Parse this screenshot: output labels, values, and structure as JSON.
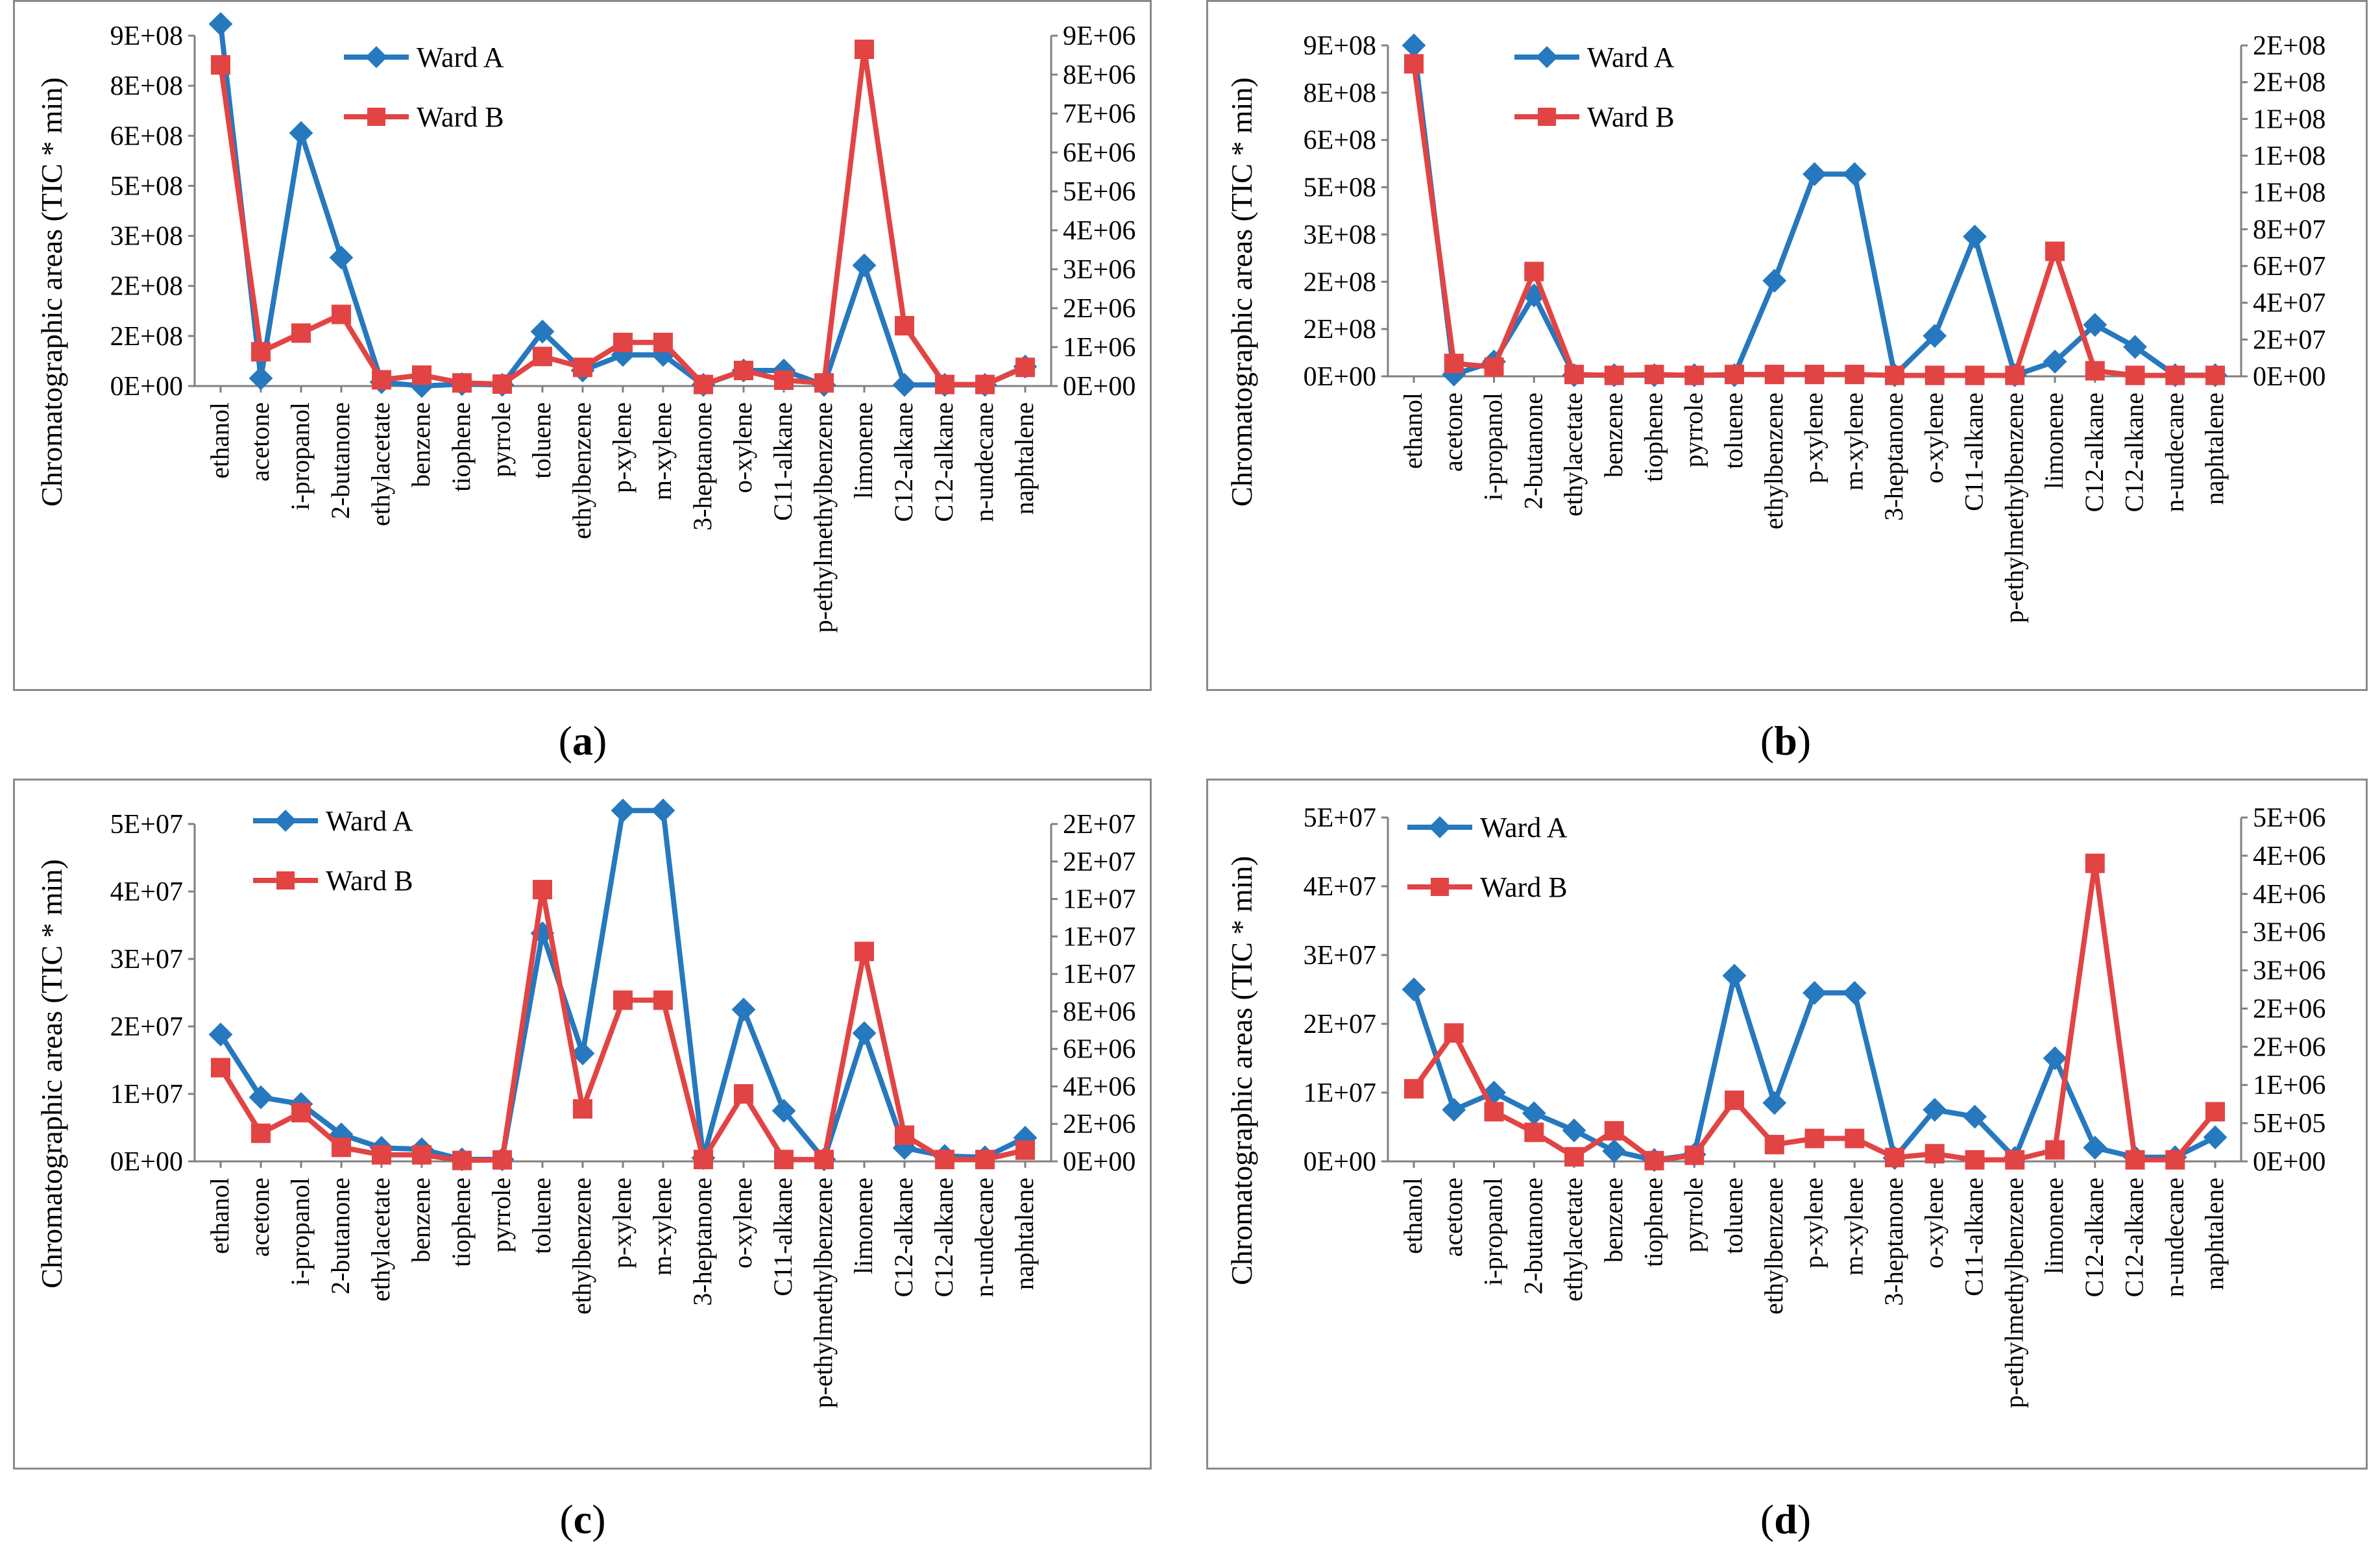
{
  "shared": {
    "categories": [
      "ethanol",
      "acetone",
      "i-propanol",
      "2-butanone",
      "ethylacetate",
      "benzene",
      "tiophene",
      "pyrrole",
      "toluene",
      "ethylbenzene",
      "p-xylene",
      "m-xylene",
      "3-heptanone",
      "o-xylene",
      "C11-alkane",
      "p-ethylmethylbenzene",
      "limonene",
      "C12-alkane",
      "C12-alkane",
      "n-undecane",
      "naphtalene"
    ],
    "ylabel": "Chromatographic areas (TIC * min)",
    "legend": [
      "Ward A",
      "Ward B"
    ],
    "colors": {
      "wardA": "#2678bf",
      "wardB": "#e24444",
      "frame": "#8a8a8a"
    }
  },
  "chart_data": [
    {
      "type": "line",
      "panel": "(a)",
      "panel_letter": "a",
      "categories": [
        "ethanol",
        "acetone",
        "i-propanol",
        "2-butanone",
        "ethylacetate",
        "benzene",
        "tiophene",
        "pyrrole",
        "toluene",
        "ethylbenzene",
        "p-xylene",
        "m-xylene",
        "3-heptanone",
        "o-xylene",
        "C11-alkane",
        "p-ethylmethylbenzene",
        "limonene",
        "C12-alkane",
        "C12-alkane",
        "n-undecane",
        "naphtalene"
      ],
      "ylabel": "Chromatographic areas (TIC * min)",
      "left_ticks": [
        "0E+00",
        "2E+08",
        "2E+08",
        "3E+08",
        "5E+08",
        "6E+08",
        "8E+08",
        "9E+08"
      ],
      "right_ticks": [
        "0E+00",
        "1E+06",
        "2E+06",
        "3E+06",
        "4E+06",
        "5E+06",
        "6E+06",
        "7E+06",
        "8E+06",
        "9E+06"
      ],
      "left_ylim": [
        0,
        900000000
      ],
      "right_ylim": [
        0,
        9000000
      ],
      "series": [
        {
          "name": "Ward A",
          "axis": "left",
          "marker": "diamond",
          "values": [
            930000000,
            20000000,
            650000000,
            330000000,
            10000000,
            0,
            5000000,
            3000000,
            140000000,
            40000000,
            80000000,
            80000000,
            3000000,
            40000000,
            40000000,
            3000000,
            310000000,
            3000000,
            3000000,
            3000000,
            50000000
          ]
        },
        {
          "name": "Ward B",
          "axis": "right",
          "marker": "square",
          "values": [
            8250000,
            880000,
            1360000,
            1840000,
            160000,
            280000,
            80000,
            50000,
            760000,
            480000,
            1120000,
            1120000,
            40000,
            400000,
            150000,
            80000,
            8650000,
            1550000,
            40000,
            40000,
            480000
          ]
        }
      ],
      "legend_position": "top-left"
    },
    {
      "type": "line",
      "panel": "(b)",
      "panel_letter": "b",
      "categories": [
        "ethanol",
        "acetone",
        "i-propanol",
        "2-butanone",
        "ethylacetate",
        "benzene",
        "tiophene",
        "pyrrole",
        "toluene",
        "ethylbenzene",
        "p-xylene",
        "m-xylene",
        "3-heptanone",
        "o-xylene",
        "C11-alkane",
        "p-ethylmethylbenzene",
        "limonene",
        "C12-alkane",
        "C12-alkane",
        "n-undecane",
        "naphtalene"
      ],
      "ylabel": "Chromatographic areas (TIC * min)",
      "left_ticks": [
        "0E+00",
        "2E+08",
        "2E+08",
        "3E+08",
        "5E+08",
        "6E+08",
        "8E+08",
        "9E+08"
      ],
      "right_ticks": [
        "0E+00",
        "2E+07",
        "4E+07",
        "6E+07",
        "8E+07",
        "1E+08",
        "1E+08",
        "1E+08",
        "2E+08",
        "2E+08"
      ],
      "left_ylim": [
        0,
        900000000
      ],
      "right_ylim": [
        0,
        180000000
      ],
      "series": [
        {
          "name": "Ward A",
          "axis": "left",
          "marker": "diamond",
          "values": [
            900000000,
            5000000,
            40000000,
            220000000,
            3000000,
            3000000,
            3000000,
            3000000,
            3000000,
            260000000,
            550000000,
            550000000,
            3000000,
            110000000,
            380000000,
            3000000,
            40000000,
            140000000,
            80000000,
            3000000,
            3000000
          ]
        },
        {
          "name": "Ward B",
          "axis": "right",
          "marker": "square",
          "values": [
            170000000,
            7000000,
            5000000,
            57000000,
            1000000,
            500000,
            1000000,
            500000,
            1000000,
            1000000,
            1000000,
            1000000,
            500000,
            500000,
            500000,
            500000,
            68000000,
            3000000,
            500000,
            500000,
            500000
          ]
        }
      ],
      "legend_position": "top-left"
    },
    {
      "type": "line",
      "panel": "(c)",
      "panel_letter": "c",
      "categories": [
        "ethanol",
        "acetone",
        "i-propanol",
        "2-butanone",
        "ethylacetate",
        "benzene",
        "tiophene",
        "pyrrole",
        "toluene",
        "ethylbenzene",
        "p-xylene",
        "m-xylene",
        "3-heptanone",
        "o-xylene",
        "C11-alkane",
        "p-ethylmethylbenzene",
        "limonene",
        "C12-alkane",
        "C12-alkane",
        "n-undecane",
        "naphtalene"
      ],
      "ylabel": "Chromatographic areas (TIC * min)",
      "left_ticks": [
        "0E+00",
        "1E+07",
        "2E+07",
        "3E+07",
        "4E+07",
        "5E+07"
      ],
      "right_ticks": [
        "0E+00",
        "2E+06",
        "4E+06",
        "6E+06",
        "8E+06",
        "1E+07",
        "1E+07",
        "1E+07",
        "2E+07",
        "2E+07"
      ],
      "left_ylim": [
        0,
        50000000
      ],
      "right_ylim": [
        0,
        18000000
      ],
      "series": [
        {
          "name": "Ward A",
          "axis": "left",
          "marker": "diamond",
          "values": [
            18800000,
            9500000,
            8500000,
            4000000,
            2000000,
            1800000,
            300000,
            300000,
            33800000,
            16000000,
            52000000,
            52000000,
            500000,
            22500000,
            7500000,
            300000,
            19000000,
            2000000,
            800000,
            600000,
            3500000
          ]
        },
        {
          "name": "Ward B",
          "axis": "right",
          "marker": "square",
          "values": [
            5000000,
            1500000,
            2600000,
            750000,
            350000,
            350000,
            50000,
            80000,
            14500000,
            2800000,
            8600000,
            8600000,
            100000,
            3600000,
            100000,
            100000,
            11200000,
            1400000,
            100000,
            100000,
            600000
          ]
        }
      ],
      "legend_position": "top-left"
    },
    {
      "type": "line",
      "panel": "(d)",
      "panel_letter": "d",
      "categories": [
        "ethanol",
        "acetone",
        "i-propanol",
        "2-butanone",
        "ethylacetate",
        "benzene",
        "tiophene",
        "pyrrole",
        "toluene",
        "ethylbenzene",
        "p-xylene",
        "m-xylene",
        "3-heptanone",
        "o-xylene",
        "C11-alkane",
        "p-ethylmethylbenzene",
        "limonene",
        "C12-alkane",
        "C12-alkane",
        "n-undecane",
        "naphtalene"
      ],
      "ylabel": "Chromatographic areas (TIC * min)",
      "left_ticks": [
        "0E+00",
        "1E+07",
        "2E+07",
        "3E+07",
        "4E+07",
        "5E+07"
      ],
      "right_ticks": [
        "0E+00",
        "5E+05",
        "1E+06",
        "2E+06",
        "2E+06",
        "3E+06",
        "3E+06",
        "4E+06",
        "4E+06",
        "5E+06"
      ],
      "left_ylim": [
        0,
        50000000
      ],
      "right_ylim": [
        0,
        4500000
      ],
      "series": [
        {
          "name": "Ward A",
          "axis": "left",
          "marker": "diamond",
          "values": [
            25000000,
            7500000,
            10000000,
            7000000,
            4500000,
            1500000,
            200000,
            1000000,
            27000000,
            8500000,
            24500000,
            24500000,
            500000,
            7500000,
            6500000,
            500000,
            15000000,
            2000000,
            600000,
            600000,
            3500000
          ]
        },
        {
          "name": "Ward B",
          "axis": "right",
          "marker": "square",
          "values": [
            950000,
            1680000,
            650000,
            380000,
            60000,
            400000,
            10000,
            80000,
            800000,
            220000,
            300000,
            300000,
            50000,
            100000,
            20000,
            20000,
            150000,
            3900000,
            20000,
            20000,
            650000
          ]
        }
      ],
      "legend_position": "top-left"
    }
  ]
}
